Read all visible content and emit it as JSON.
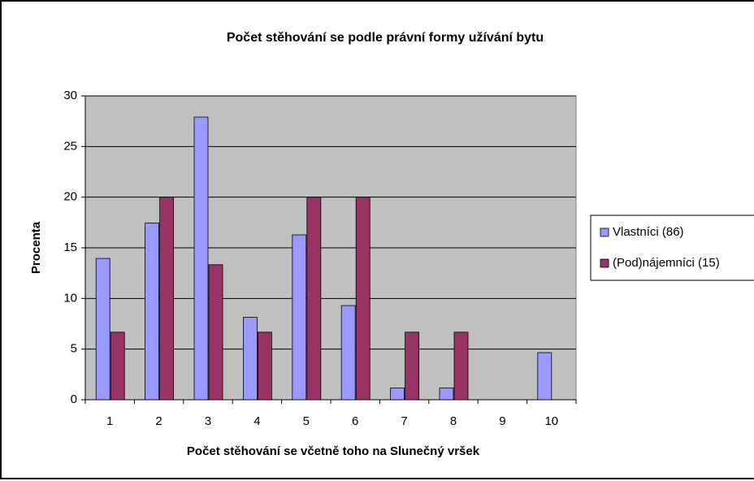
{
  "chart_data": {
    "type": "bar",
    "title": "Počet stěhování se podle právní formy užívání bytu",
    "x_label": "Počet stěhování se včetně toho na Slunečný vršek",
    "y_label": "Procenta",
    "categories": [
      "1",
      "2",
      "3",
      "4",
      "5",
      "6",
      "7",
      "8",
      "9",
      "10"
    ],
    "series": [
      {
        "name": "Vlastníci (86)",
        "color": "#9999ff",
        "values": [
          13.95,
          17.44,
          27.91,
          8.14,
          16.28,
          9.3,
          1.16,
          1.16,
          0,
          4.65
        ]
      },
      {
        "name": "(Pod)nájemníci (15)",
        "color": "#993366",
        "values": [
          6.67,
          20,
          13.33,
          6.67,
          20,
          20,
          6.67,
          6.67,
          0,
          0
        ]
      }
    ],
    "ylim": [
      0,
      30
    ],
    "yticks": [
      0,
      5,
      10,
      15,
      20,
      25,
      30
    ],
    "grid": true,
    "legend": "right"
  }
}
